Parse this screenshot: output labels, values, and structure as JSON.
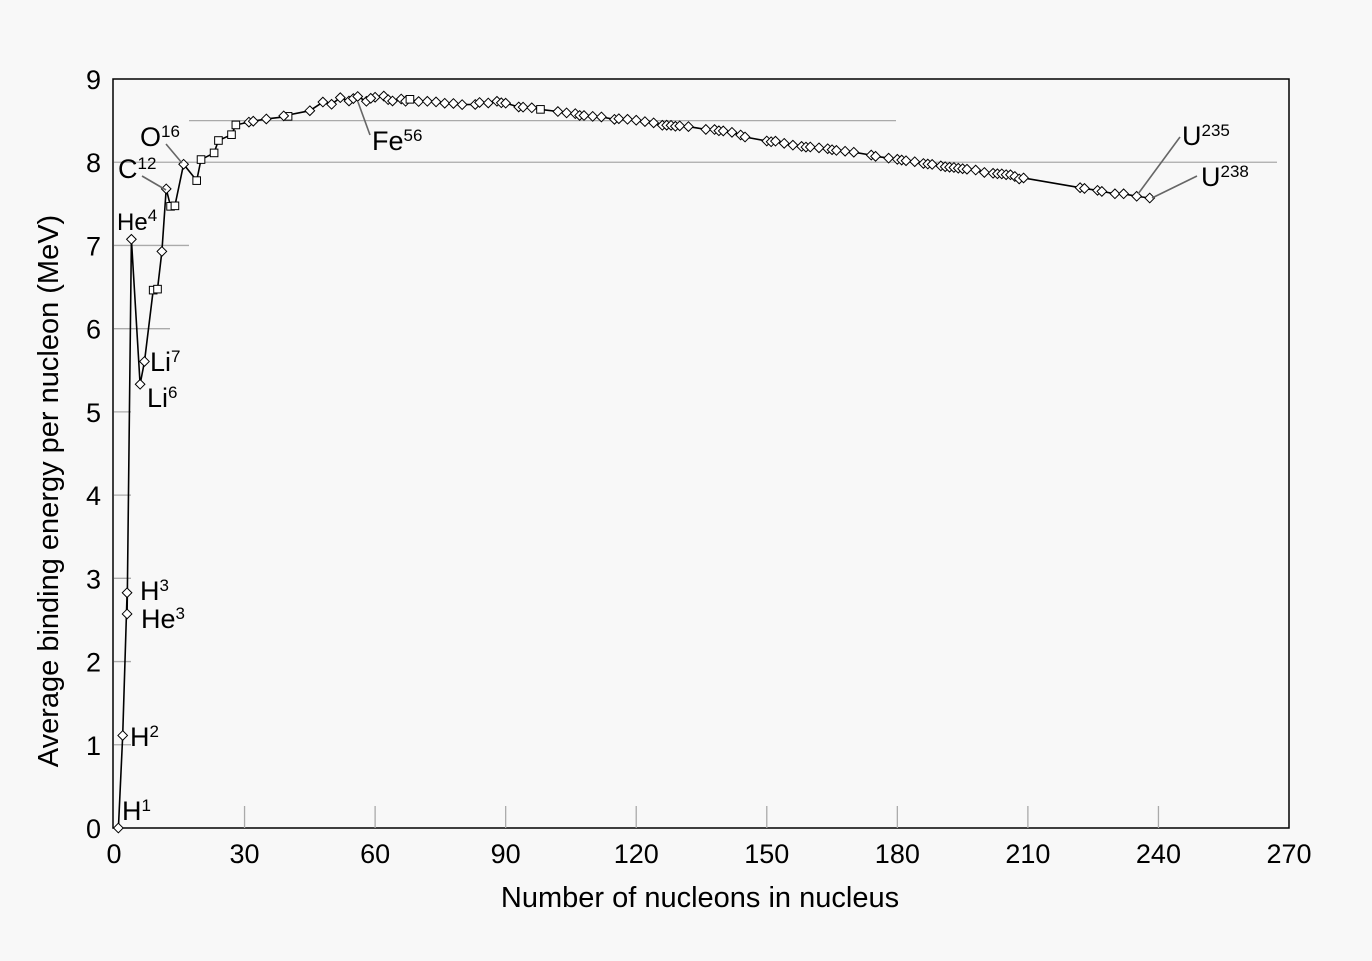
{
  "chart_data": {
    "type": "line",
    "xlabel": "Number of nucleons in nucleus",
    "ylabel": "Average binding energy per nucleon (MeV)",
    "xlim": [
      0,
      270
    ],
    "ylim": [
      0,
      9
    ],
    "xticks": [
      "0",
      "30",
      "60",
      "90",
      "120",
      "150",
      "180",
      "210",
      "240",
      "270"
    ],
    "yticks": [
      "0",
      "1",
      "2",
      "3",
      "4",
      "5",
      "6",
      "7",
      "8",
      "9"
    ],
    "grid": "partial horizontal reference lines at 1-8 MeV",
    "legend": "none",
    "marker": "diamond (some squares)",
    "series": [
      {
        "x": [
          1,
          2,
          3,
          3,
          4,
          6,
          7,
          9,
          10,
          11,
          12,
          13,
          14,
          16,
          19,
          20,
          23,
          24,
          27,
          28,
          31,
          32,
          35,
          40,
          39,
          45,
          48,
          50,
          52,
          54,
          55,
          56,
          58,
          60,
          59,
          62,
          63,
          64,
          66,
          67,
          68,
          70,
          72,
          74,
          76,
          78,
          80,
          83,
          84,
          86,
          88,
          89,
          90,
          93,
          94,
          96,
          98,
          102,
          104,
          106,
          107,
          108,
          110,
          112,
          115,
          116,
          118,
          120,
          122,
          124,
          126,
          127,
          128,
          129,
          130,
          132,
          136,
          138,
          139,
          140,
          142,
          144,
          145,
          150,
          151,
          152,
          154,
          156,
          158,
          159,
          160,
          162,
          164,
          165,
          166,
          168,
          170,
          174,
          175,
          178,
          180,
          181,
          182,
          184,
          186,
          187,
          188,
          190,
          191,
          192,
          193,
          194,
          195,
          196,
          198,
          200,
          202,
          203,
          204,
          205,
          206,
          207,
          208,
          209,
          222,
          223,
          226,
          227,
          230,
          232,
          235,
          238
        ],
        "y": [
          0,
          1.112,
          2.827,
          2.572,
          7.074,
          5.332,
          5.606,
          6.463,
          6.475,
          6.928,
          7.68,
          7.47,
          7.476,
          7.976,
          7.779,
          8.032,
          8.112,
          8.261,
          8.331,
          8.448,
          8.482,
          8.493,
          8.52,
          8.551,
          8.557,
          8.619,
          8.723,
          8.696,
          8.776,
          8.736,
          8.765,
          8.79,
          8.732,
          8.781,
          8.768,
          8.795,
          8.752,
          8.736,
          8.76,
          8.732,
          8.756,
          8.729,
          8.732,
          8.725,
          8.709,
          8.706,
          8.692,
          8.694,
          8.718,
          8.712,
          8.732,
          8.714,
          8.71,
          8.664,
          8.662,
          8.654,
          8.635,
          8.609,
          8.593,
          8.584,
          8.562,
          8.561,
          8.551,
          8.544,
          8.515,
          8.523,
          8.516,
          8.505,
          8.488,
          8.473,
          8.444,
          8.445,
          8.443,
          8.432,
          8.437,
          8.428,
          8.394,
          8.393,
          8.378,
          8.376,
          8.359,
          8.327,
          8.303,
          8.255,
          8.246,
          8.253,
          8.227,
          8.205,
          8.19,
          8.182,
          8.183,
          8.173,
          8.162,
          8.15,
          8.142,
          8.132,
          8.12,
          8.086,
          8.071,
          8.049,
          8.035,
          8.026,
          8.018,
          8.006,
          7.985,
          7.978,
          7.974,
          7.956,
          7.946,
          7.94,
          7.937,
          7.928,
          7.922,
          7.916,
          7.906,
          7.877,
          7.867,
          7.861,
          7.86,
          7.85,
          7.849,
          7.829,
          7.799,
          7.811,
          7.694,
          7.685,
          7.662,
          7.649,
          7.621,
          7.621,
          7.591,
          7.57
        ]
      }
    ],
    "annotations": [
      {
        "base": "H",
        "mass": "1",
        "x": 1,
        "y": 0
      },
      {
        "base": "H",
        "mass": "2",
        "x": 2,
        "y": 1.112
      },
      {
        "base": "H",
        "mass": "3",
        "x": 3,
        "y": 2.827
      },
      {
        "base": "He",
        "mass": "3",
        "x": 3,
        "y": 2.572
      },
      {
        "base": "He",
        "mass": "4",
        "x": 4,
        "y": 7.074
      },
      {
        "base": "Li",
        "mass": "6",
        "x": 6,
        "y": 5.332
      },
      {
        "base": "Li",
        "mass": "7",
        "x": 7,
        "y": 5.606
      },
      {
        "base": "C",
        "mass": "12",
        "x": 12,
        "y": 7.68
      },
      {
        "base": "O",
        "mass": "16",
        "x": 16,
        "y": 7.976
      },
      {
        "base": "Fe",
        "mass": "56",
        "x": 56,
        "y": 8.79
      },
      {
        "base": "U",
        "mass": "235",
        "x": 235,
        "y": 7.591
      },
      {
        "base": "U",
        "mass": "238",
        "x": 238,
        "y": 7.57
      }
    ]
  }
}
